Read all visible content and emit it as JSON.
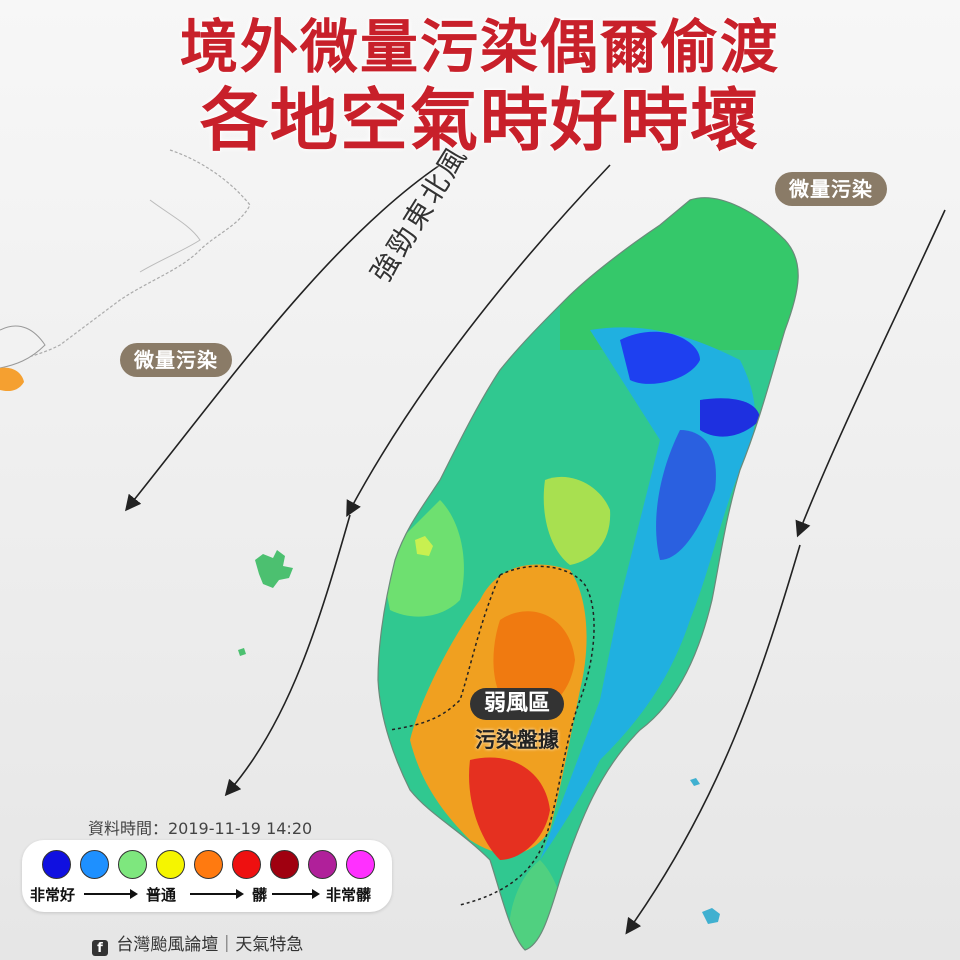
{
  "header": {
    "line1": "境外微量污染偶爾偷渡",
    "line2": "各地空氣時好時壞"
  },
  "labels": {
    "pollution_right": "微量污染",
    "pollution_left": "微量污染",
    "wind": "強勁東北風",
    "weak_zone_title": "弱風區",
    "weak_zone_sub": "污染盤據"
  },
  "data_time": "資料時間：2019-11-19 14:20",
  "legend": {
    "colors": [
      "#1010e0",
      "#1e90ff",
      "#7ee77e",
      "#f5f500",
      "#ff7a10",
      "#ee1010",
      "#a00010",
      "#b0209a",
      "#ff30ff"
    ],
    "scale_labels": {
      "very_good": "非常好",
      "normal": "普通",
      "dirty": "髒",
      "very_dirty": "非常髒"
    }
  },
  "credit": {
    "icon": "facebook-icon",
    "text": "台灣颱風論壇｜天氣特急"
  }
}
